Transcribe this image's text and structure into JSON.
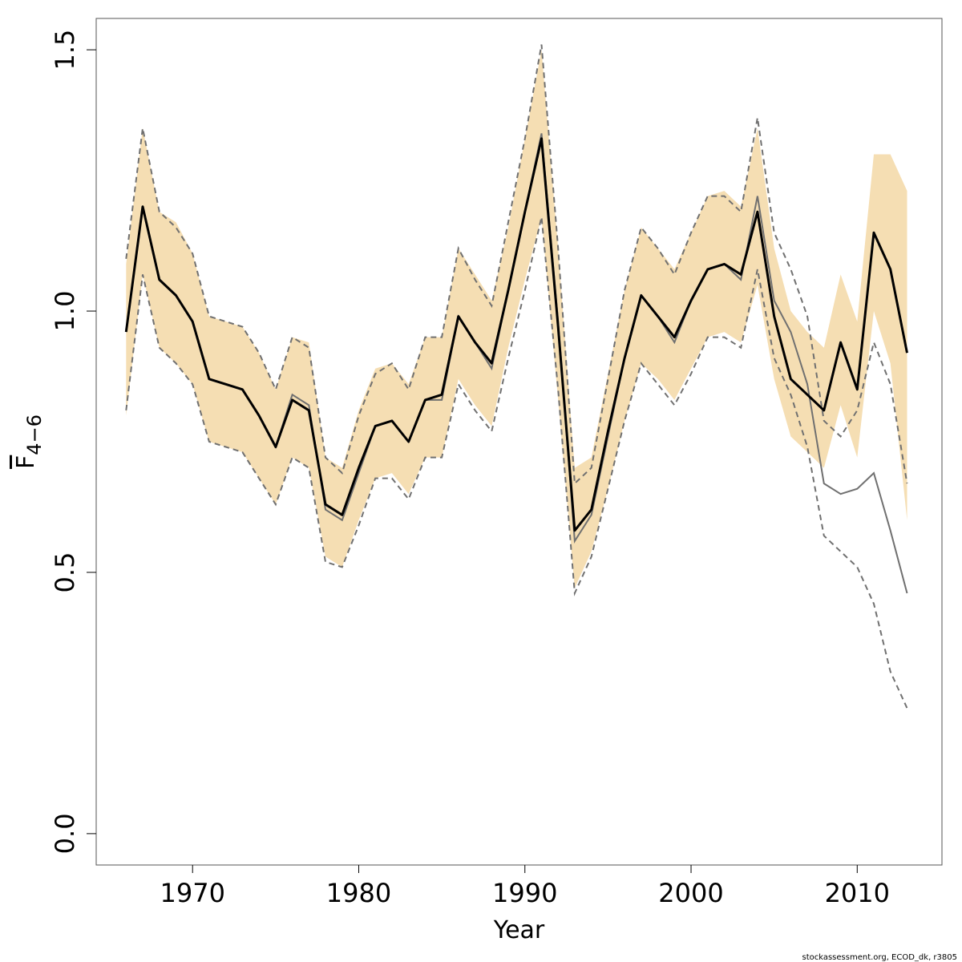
{
  "chart_data": {
    "type": "line",
    "title": "",
    "xlabel": "Year",
    "ylabel": {
      "main": "F",
      "subscript": "4−6"
    },
    "xlim": [
      1964.2,
      2015.1
    ],
    "ylim": [
      -0.06,
      1.56
    ],
    "x_ticks": [
      1970,
      1980,
      1990,
      2000,
      2010
    ],
    "y_ticks": [
      0.0,
      0.5,
      1.0,
      1.5
    ],
    "y_tick_labels": [
      "0.0",
      "0.5",
      "1.0",
      "1.5"
    ],
    "grid": false,
    "legend": "none",
    "colors": {
      "band": "#F5DEB3",
      "current": "#000000",
      "previous": "#707070"
    },
    "x": [
      1966,
      1967,
      1968,
      1969,
      1970,
      1971,
      1972,
      1973,
      1974,
      1975,
      1976,
      1977,
      1978,
      1979,
      1980,
      1981,
      1982,
      1983,
      1984,
      1985,
      1986,
      1987,
      1988,
      1989,
      1990,
      1991,
      1992,
      1993,
      1994,
      1995,
      1996,
      1997,
      1998,
      1999,
      2000,
      2001,
      2002,
      2003,
      2004,
      2005,
      2006,
      2007,
      2008,
      2009,
      2010,
      2011,
      2012,
      2013
    ],
    "current": {
      "estimate": [
        0.96,
        1.2,
        1.06,
        1.03,
        0.98,
        0.87,
        0.86,
        0.85,
        0.8,
        0.74,
        0.83,
        0.81,
        0.63,
        0.61,
        0.7,
        0.78,
        0.79,
        0.75,
        0.83,
        0.84,
        0.99,
        0.94,
        0.9,
        1.04,
        1.19,
        1.33,
        0.97,
        0.58,
        0.62,
        0.77,
        0.91,
        1.03,
        0.99,
        0.95,
        1.02,
        1.08,
        1.09,
        1.07,
        1.19,
        0.99,
        0.87,
        0.84,
        0.81,
        0.94,
        0.85,
        1.15,
        1.08,
        0.92
      ],
      "lower": [
        0.8,
        1.07,
        0.93,
        0.9,
        0.86,
        0.75,
        0.74,
        0.73,
        0.68,
        0.63,
        0.72,
        0.7,
        0.53,
        0.51,
        0.6,
        0.68,
        0.69,
        0.65,
        0.72,
        0.72,
        0.87,
        0.82,
        0.78,
        0.93,
        1.06,
        1.18,
        0.83,
        0.47,
        0.54,
        0.66,
        0.79,
        0.9,
        0.87,
        0.83,
        0.89,
        0.95,
        0.96,
        0.94,
        1.05,
        0.87,
        0.76,
        0.73,
        0.7,
        0.82,
        0.72,
        1.0,
        0.9,
        0.6
      ],
      "upper": [
        1.09,
        1.35,
        1.19,
        1.17,
        1.11,
        0.99,
        0.98,
        0.97,
        0.92,
        0.85,
        0.95,
        0.94,
        0.72,
        0.7,
        0.81,
        0.89,
        0.9,
        0.86,
        0.95,
        0.95,
        1.12,
        1.07,
        1.02,
        1.16,
        1.33,
        1.5,
        1.12,
        0.7,
        0.72,
        0.88,
        1.04,
        1.16,
        1.12,
        1.08,
        1.15,
        1.22,
        1.23,
        1.2,
        1.35,
        1.12,
        1.0,
        0.96,
        0.93,
        1.07,
        0.98,
        1.3,
        1.3,
        1.23
      ]
    },
    "previous": {
      "x_end": 2013,
      "estimate": [
        0.96,
        1.2,
        1.06,
        1.03,
        0.98,
        0.87,
        0.86,
        0.85,
        0.8,
        0.74,
        0.84,
        0.82,
        0.62,
        0.6,
        0.69,
        0.78,
        0.79,
        0.75,
        0.83,
        0.83,
        0.99,
        0.94,
        0.89,
        1.04,
        1.19,
        1.34,
        0.98,
        0.56,
        0.61,
        0.76,
        0.91,
        1.03,
        0.99,
        0.94,
        1.02,
        1.08,
        1.09,
        1.06,
        1.22,
        1.02,
        0.96,
        0.86,
        0.67,
        0.65,
        0.66,
        0.69,
        0.58,
        0.46
      ],
      "lower": [
        0.81,
        1.07,
        0.93,
        0.9,
        0.86,
        0.75,
        0.74,
        0.73,
        0.68,
        0.63,
        0.72,
        0.7,
        0.52,
        0.51,
        0.59,
        0.68,
        0.68,
        0.64,
        0.72,
        0.72,
        0.86,
        0.81,
        0.77,
        0.91,
        1.04,
        1.18,
        0.85,
        0.46,
        0.53,
        0.66,
        0.79,
        0.9,
        0.86,
        0.82,
        0.88,
        0.95,
        0.95,
        0.93,
        1.08,
        0.91,
        0.84,
        0.74,
        0.57,
        0.54,
        0.51,
        0.44,
        0.31,
        0.24
      ],
      "upper": [
        1.1,
        1.35,
        1.19,
        1.16,
        1.11,
        0.99,
        0.98,
        0.97,
        0.92,
        0.85,
        0.95,
        0.93,
        0.72,
        0.69,
        0.8,
        0.88,
        0.9,
        0.85,
        0.95,
        0.95,
        1.12,
        1.06,
        1.01,
        1.17,
        1.33,
        1.51,
        1.12,
        0.67,
        0.7,
        0.87,
        1.04,
        1.16,
        1.12,
        1.07,
        1.15,
        1.22,
        1.22,
        1.19,
        1.37,
        1.15,
        1.08,
        0.99,
        0.79,
        0.76,
        0.81,
        0.94,
        0.86,
        0.67
      ]
    }
  },
  "footnote": "stockassessment.org, ECOD_dk, r3805"
}
